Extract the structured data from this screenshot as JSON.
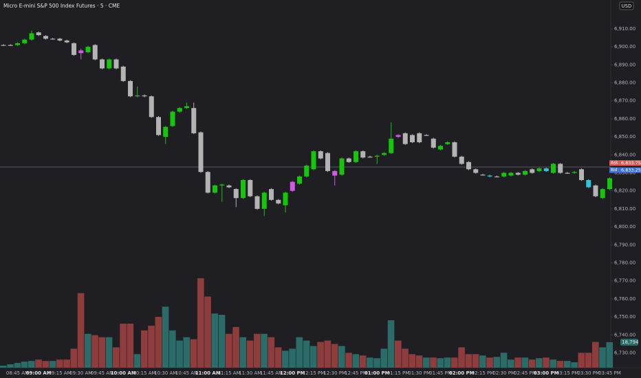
{
  "chart_data": {
    "type": "candlestick",
    "title": "Micro E-mini S&P 500 Index Futures · 5 · CME",
    "currency": "USD",
    "categories": [
      null,
      null,
      "08:45 AM",
      null,
      null,
      "09:00 AM",
      null,
      null,
      "09:15 AM",
      null,
      null,
      "09:30 AM",
      null,
      null,
      "09:45 AM",
      null,
      null,
      "10:00 AM",
      null,
      null,
      "10:15 AM",
      null,
      null,
      "10:30 AM",
      null,
      null,
      "10:45 AM",
      null,
      null,
      "11:00 AM",
      null,
      null,
      "11:15 AM",
      null,
      null,
      "11:30 AM",
      null,
      null,
      "11:45 AM",
      null,
      null,
      "12:00 PM",
      null,
      null,
      "12:15 PM",
      null,
      null,
      "12:30 PM",
      null,
      null,
      "12:45 PM",
      null,
      null,
      "01:00 PM",
      null,
      null,
      "01:15 PM",
      null,
      null,
      "01:30 PM",
      null,
      null,
      "01:45 PM",
      null,
      null,
      "02:00 PM",
      null,
      null,
      "02:15 PM",
      null,
      null,
      "02:30 PM",
      null,
      null,
      "02:45 PM",
      null,
      null,
      "03:00 PM",
      null,
      null,
      "03:15 PM",
      null,
      null,
      "03:30 PM",
      null,
      null,
      "03:45 PM"
    ],
    "open": [
      6901,
      6901,
      6901,
      6902,
      6904,
      6908,
      6906,
      6904.5,
      6904.5,
      6903.5,
      6902,
      6898,
      6897,
      6901,
      6893,
      6888,
      6893,
      6889,
      6881,
      6872.5,
      6873,
      6872.5,
      6861,
      6850,
      6856,
      6864,
      6866,
      6866,
      6852.5,
      6830.5,
      6819,
      6823,
      6823,
      6821,
      6816,
      6826,
      6817,
      6810,
      6821,
      6815,
      6812,
      6820,
      6824,
      6828,
      6832,
      6842,
      6841,
      6831,
      6829,
      6838,
      6836,
      6842,
      6839,
      6839,
      6840,
      6841,
      6851,
      6852,
      6851,
      6852,
      6851,
      6849,
      6843,
      6846,
      6847,
      6839,
      6836,
      6832,
      6829,
      6828.5,
      6828,
      6828,
      6828.5,
      6830,
      6829,
      6832,
      6831,
      6832.5,
      6830,
      6835,
      6830,
      6830,
      6832,
      6826,
      6823,
      6816,
      6821
    ],
    "high": [
      6901.5,
      6901.5,
      6902.5,
      6904.5,
      6909,
      6908.5,
      6906.5,
      6905,
      6905,
      6904,
      6902.5,
      6899,
      6900.5,
      6901.5,
      6893.5,
      6893.5,
      6893.5,
      6889.5,
      6881.5,
      6878,
      6873.5,
      6873,
      6861.5,
      6856,
      6864.5,
      6866.5,
      6869,
      6869,
      6853,
      6831,
      6823.5,
      6824,
      6823.5,
      6821.5,
      6826.5,
      6826.5,
      6817.5,
      6819.5,
      6821.5,
      6815.5,
      6819.5,
      6825.5,
      6828.5,
      6834.5,
      6842.5,
      6842.5,
      6841.5,
      6831.5,
      6838.5,
      6838.5,
      6842.5,
      6842.5,
      6839.5,
      6840,
      6841.5,
      6858,
      6851.5,
      6852.5,
      6851.5,
      6852.5,
      6851.5,
      6849.5,
      6845.5,
      6847.5,
      6847.5,
      6839.5,
      6836.5,
      6832.5,
      6829.5,
      6829,
      6828.5,
      6830.5,
      6830.5,
      6830.5,
      6831.5,
      6832.5,
      6833,
      6833,
      6835.5,
      6835.5,
      6830.5,
      6831,
      6832.5,
      6826.5,
      6823.5,
      6821.5,
      6827.5
    ],
    "low": [
      6900.5,
      6900.5,
      6900.5,
      6901.5,
      6903.5,
      6906,
      6904,
      6904,
      6903,
      6902,
      6895,
      6893,
      6896.5,
      6892.5,
      6887.5,
      6887.5,
      6887.5,
      6880.5,
      6872,
      6872,
      6872,
      6860.5,
      6850.5,
      6846,
      6855.5,
      6863.5,
      6865.5,
      6851.5,
      6830,
      6818.5,
      6818.5,
      6814,
      6821.5,
      6811,
      6815.5,
      6816.5,
      6809.5,
      6806,
      6814.5,
      6812.5,
      6808,
      6819.5,
      6823.5,
      6827.5,
      6831.5,
      6837.5,
      6830.5,
      6823,
      6828.5,
      6835.5,
      6835.5,
      6838,
      6838.5,
      6835,
      6839.5,
      6840.5,
      6849.5,
      6845.5,
      6846.5,
      6846.5,
      6850.5,
      6843.5,
      6842.5,
      6845.5,
      6838.5,
      6834.5,
      6831.5,
      6829.5,
      6828.5,
      6827.5,
      6827.5,
      6827.5,
      6828,
      6828.5,
      6828.5,
      6829.5,
      6830.5,
      6830.5,
      6829.5,
      6829.5,
      6829.5,
      6829.5,
      6825.5,
      6821.5,
      6816.5,
      6815.5,
      6820.5
    ],
    "close": [
      6901,
      6901,
      6902,
      6904,
      6907.5,
      6906.5,
      6904.5,
      6904.5,
      6903.5,
      6902.5,
      6895.5,
      6896.5,
      6900,
      6893,
      6888,
      6893,
      6888,
      6881,
      6872.5,
      6873,
      6872.5,
      6861,
      6851,
      6855.5,
      6864,
      6866,
      6867,
      6852,
      6830.5,
      6819,
      6823,
      6823.5,
      6822,
      6816,
      6826,
      6817,
      6810,
      6819,
      6815,
      6813,
      6819,
      6825,
      6828,
      6834,
      6842,
      6838,
      6831,
      6828.5,
      6838,
      6836,
      6842,
      6838.5,
      6839,
      6839.5,
      6841,
      6849,
      6850,
      6846,
      6847,
      6847,
      6851,
      6844,
      6845,
      6847,
      6839,
      6835,
      6832,
      6830,
      6829,
      6828,
      6828,
      6830,
      6830,
      6829,
      6831,
      6830,
      6832.5,
      6831,
      6835,
      6830,
      6830,
      6830.5,
      6826,
      6822,
      6817,
      6821,
      6827
    ],
    "candle_colors": [
      "#b3b3b3",
      "#b3b3b3",
      "#16c60c",
      "#16c60c",
      "#16c60c",
      "#b3b3b3",
      "#b3b3b3",
      "#b3b3b3",
      "#b3b3b3",
      "#b3b3b3",
      "#b3b3b3",
      "#d05ce3",
      "#16c60c",
      "#b3b3b3",
      "#b3b3b3",
      "#16c60c",
      "#b3b3b3",
      "#b3b3b3",
      "#b3b3b3",
      "#16c60c",
      "#b3b3b3",
      "#b3b3b3",
      "#b3b3b3",
      "#16c60c",
      "#16c60c",
      "#16c60c",
      "#16c60c",
      "#b3b3b3",
      "#b3b3b3",
      "#b3b3b3",
      "#16c60c",
      "#16c60c",
      "#b3b3b3",
      "#b3b3b3",
      "#16c60c",
      "#b3b3b3",
      "#b3b3b3",
      "#16c60c",
      "#b3b3b3",
      "#b3b3b3",
      "#16c60c",
      "#d05ce3",
      "#16c60c",
      "#16c60c",
      "#16c60c",
      "#b3b3b3",
      "#b3b3b3",
      "#d05ce3",
      "#16c60c",
      "#b3b3b3",
      "#16c60c",
      "#b3b3b3",
      "#b3b3b3",
      "#16c60c",
      "#16c60c",
      "#16c60c",
      "#d05ce3",
      "#b3b3b3",
      "#b3b3b3",
      "#b3b3b3",
      "#b3b3b3",
      "#b3b3b3",
      "#16c60c",
      "#16c60c",
      "#b3b3b3",
      "#b3b3b3",
      "#b3b3b3",
      "#b3b3b3",
      "#b3b3b3",
      "#2ec4e0",
      "#b3b3b3",
      "#16c60c",
      "#16c60c",
      "#b3b3b3",
      "#16c60c",
      "#b3b3b3",
      "#16c60c",
      "#2ec4e0",
      "#16c60c",
      "#b3b3b3",
      "#b3b3b3",
      "#16c60c",
      "#b3b3b3",
      "#2ec4e0",
      "#b3b3b3",
      "#16c60c",
      "#16c60c"
    ],
    "ylim": [
      6721.8,
      6926
    ],
    "yticks": [
      {
        "value": 6730,
        "label": "6,730.00"
      },
      {
        "value": 6740,
        "label": "6,740.00"
      },
      {
        "value": 6750,
        "label": "6,750.00"
      },
      {
        "value": 6760,
        "label": "6,760.00"
      },
      {
        "value": 6770,
        "label": "6,770.00"
      },
      {
        "value": 6780,
        "label": "6,780.00"
      },
      {
        "value": 6790,
        "label": "6,790.00"
      },
      {
        "value": 6800,
        "label": "6,800.00"
      },
      {
        "value": 6810,
        "label": "6,810.00"
      },
      {
        "value": 6820,
        "label": "6,820.00"
      },
      {
        "value": 6830,
        "label": "6,830.00"
      },
      {
        "value": 6840,
        "label": "6,840.00"
      },
      {
        "value": 6850,
        "label": "6,850.00"
      },
      {
        "value": 6860,
        "label": "6,860.00"
      },
      {
        "value": 6870,
        "label": "6,870.00"
      },
      {
        "value": 6880,
        "label": "6,880.00"
      },
      {
        "value": 6890,
        "label": "6,890.00"
      },
      {
        "value": 6900,
        "label": "6,900.00"
      },
      {
        "value": 6910,
        "label": "6,910.00"
      }
    ],
    "ask": {
      "name": "Ask",
      "value": 6833.75,
      "label": "6,833.75",
      "color": "#e05a5a"
    },
    "bid": {
      "name": "Bid",
      "value": 6833.25,
      "label": "6,833.25",
      "color": "#3f6fe0"
    },
    "volume": {
      "values": [
        1500,
        2500,
        3500,
        4500,
        5000,
        6000,
        5000,
        5000,
        6000,
        6000,
        14000,
        55000,
        25000,
        24000,
        22500,
        22500,
        15000,
        32500,
        32500,
        10000,
        27500,
        31000,
        37500,
        45000,
        27500,
        20000,
        22500,
        21000,
        66000,
        52500,
        40000,
        39000,
        25000,
        30000,
        22500,
        20000,
        25000,
        25000,
        22500,
        15000,
        12500,
        14000,
        22500,
        20000,
        16000,
        19000,
        20000,
        17500,
        16000,
        11000,
        10000,
        9000,
        7500,
        7000,
        14000,
        35000,
        20000,
        14000,
        10000,
        9000,
        7500,
        7500,
        7000,
        7500,
        7500,
        15000,
        10000,
        10000,
        9000,
        7500,
        8000,
        11000,
        6000,
        7500,
        7500,
        6000,
        7000,
        7500,
        6000,
        5000,
        5000,
        4000,
        11000,
        11000,
        19000,
        15000,
        18794
      ],
      "value_labels": [
        null,
        null,
        null,
        null,
        null,
        null,
        null,
        null,
        null,
        null,
        null,
        null,
        null,
        null,
        null,
        null,
        null,
        null,
        null,
        null,
        null,
        null,
        null,
        null,
        null,
        null,
        null,
        null,
        null,
        null,
        null,
        null,
        null,
        null,
        null,
        null,
        null,
        null,
        null,
        null,
        null,
        null,
        null,
        null,
        null,
        null,
        null,
        null,
        null,
        null,
        null,
        null,
        null,
        null,
        null,
        null,
        null,
        null,
        null,
        null,
        null,
        null,
        null,
        null,
        null,
        null,
        null,
        null,
        null,
        null,
        null,
        null,
        null,
        null,
        null,
        null,
        null,
        null,
        null,
        null,
        null,
        null,
        null,
        null,
        null,
        null,
        "18,794"
      ],
      "up_color": "#2b6b68",
      "down_color": "#8f3c3c",
      "ylim": [
        0,
        72000
      ]
    }
  }
}
